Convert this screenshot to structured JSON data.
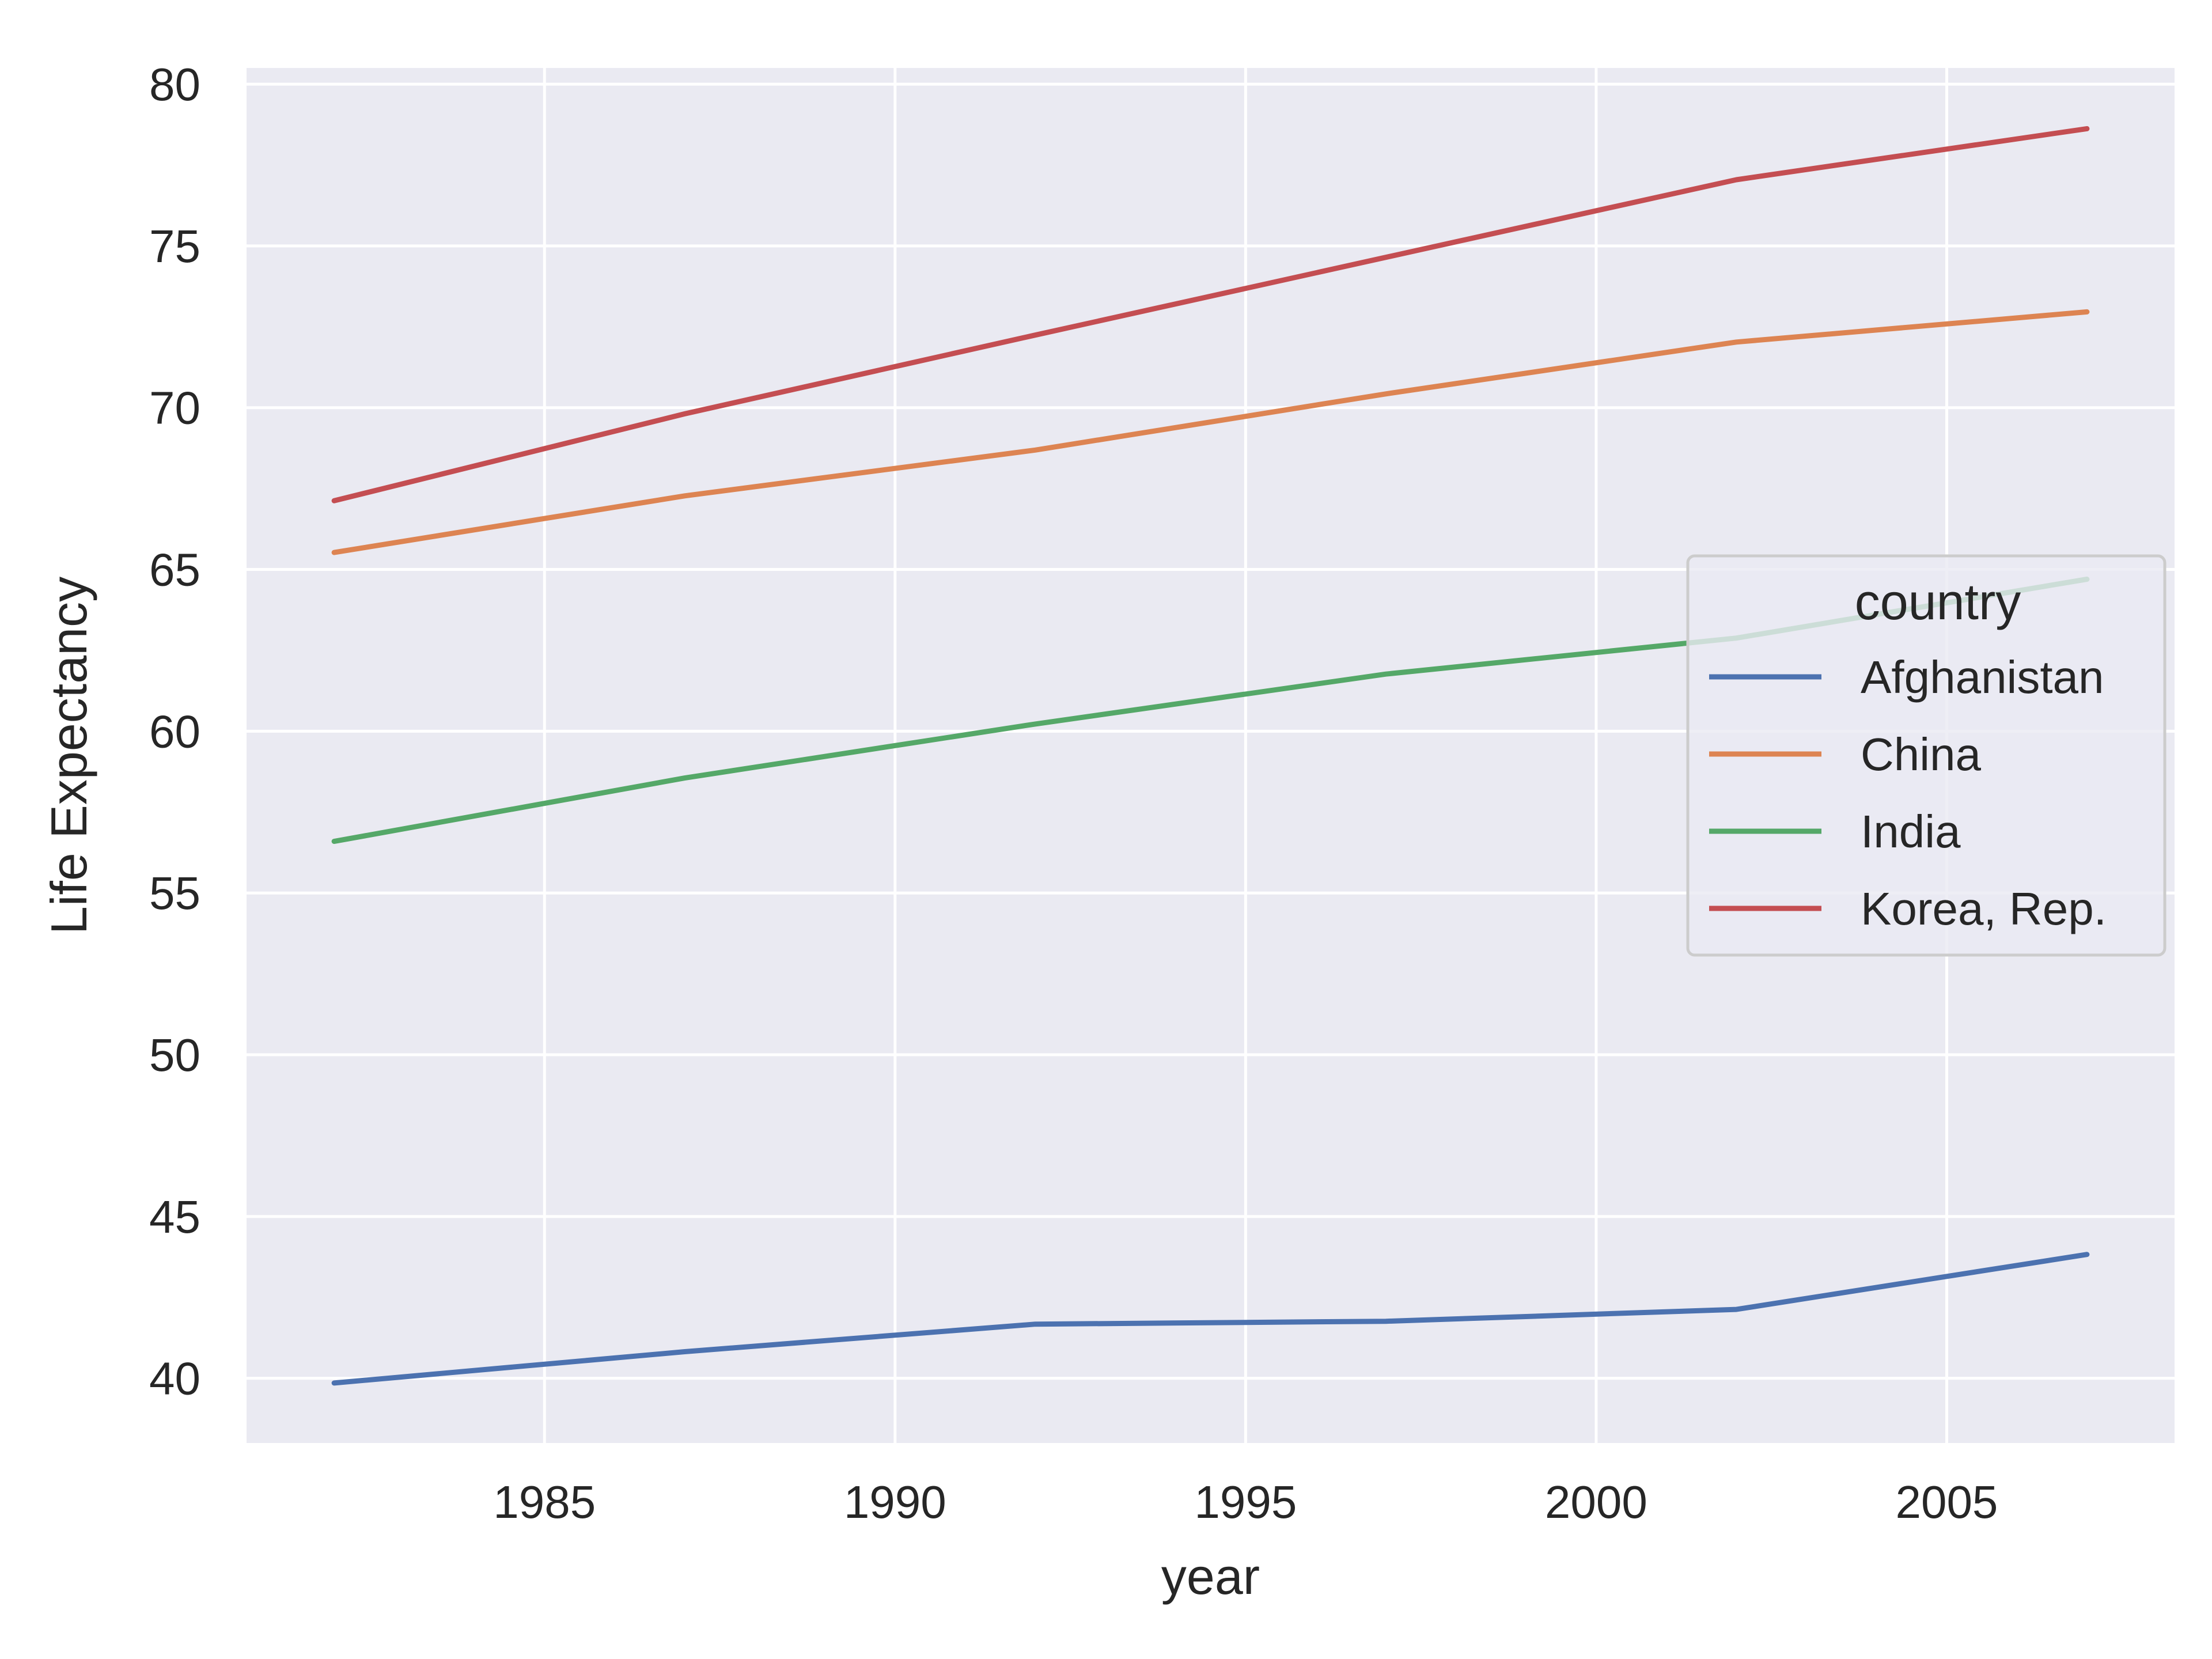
{
  "chart_data": {
    "type": "line",
    "title": "",
    "xlabel": "year",
    "ylabel": "Life Expectancy",
    "x": [
      1982,
      1987,
      1992,
      1997,
      2002,
      2007
    ],
    "xticks": [
      "1985",
      "1990",
      "1995",
      "2000",
      "2005"
    ],
    "yticks": [
      "40",
      "45",
      "50",
      "55",
      "60",
      "65",
      "70",
      "75",
      "80"
    ],
    "xlim": [
      1980.75,
      2008.25
    ],
    "ylim": [
      38.0,
      80.5
    ],
    "grid": true,
    "legend": {
      "title": "country",
      "placement": "center-right"
    },
    "series": [
      {
        "name": "Afghanistan",
        "color": "#4c72b0",
        "values": [
          39.854,
          40.822,
          41.674,
          41.763,
          42.129,
          43.828
        ]
      },
      {
        "name": "China",
        "color": "#dd8452",
        "values": [
          65.525,
          67.274,
          68.69,
          70.426,
          72.028,
          72.961
        ]
      },
      {
        "name": "India",
        "color": "#55a868",
        "values": [
          56.596,
          58.553,
          60.223,
          61.765,
          62.879,
          64.698
        ]
      },
      {
        "name": "Korea, Rep.",
        "color": "#c44e52",
        "values": [
          67.123,
          69.81,
          72.244,
          74.647,
          77.045,
          78.623
        ]
      }
    ]
  }
}
